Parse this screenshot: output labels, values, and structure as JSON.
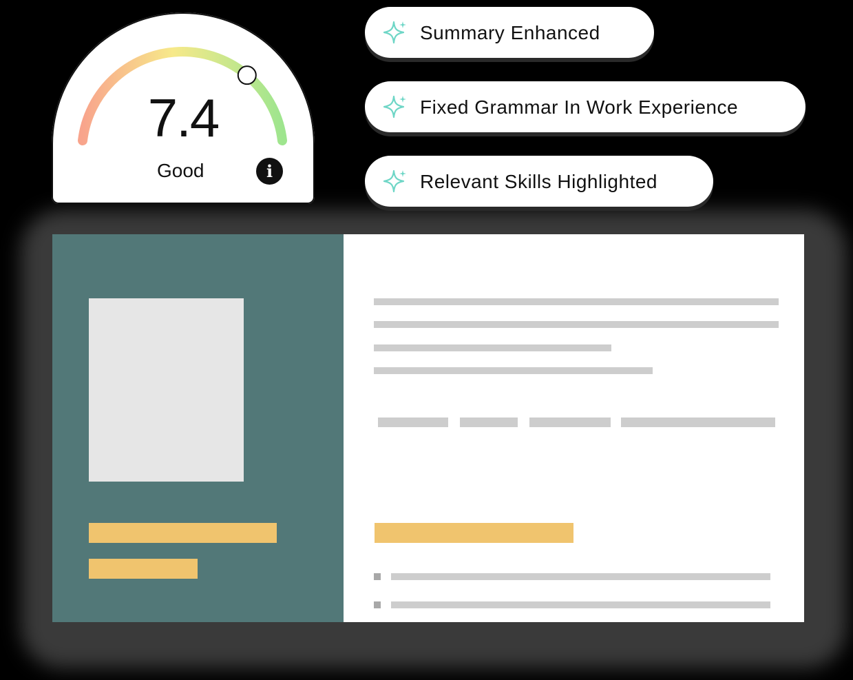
{
  "score_card": {
    "score": "7.4",
    "rating": "Good",
    "info_icon": "info-icon",
    "score_fraction": 0.74
  },
  "improvements": [
    {
      "label": "Summary Enhanced",
      "icon": "sparkle-icon"
    },
    {
      "label": "Fixed Grammar In Work Experience",
      "icon": "sparkle-icon"
    },
    {
      "label": "Relevant Skills Highlighted",
      "icon": "sparkle-icon"
    }
  ],
  "colors": {
    "sidebar": "#527878",
    "highlight": "#f0c46e",
    "placeholder_text": "#cdcdcd",
    "sparkle": "#6ed6c6"
  }
}
